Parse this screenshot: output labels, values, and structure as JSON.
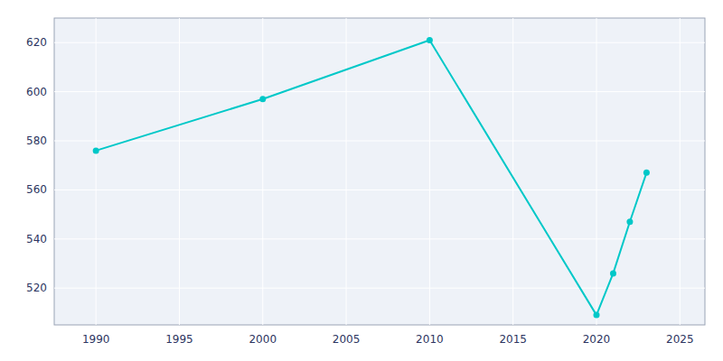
{
  "chart_data": {
    "type": "line",
    "x": [
      1990,
      2000,
      2010,
      2020,
      2021,
      2022,
      2023
    ],
    "values": [
      576,
      597,
      621,
      509,
      526,
      547,
      567
    ],
    "color": "#00c8c8",
    "marker": "circle",
    "xlim": [
      1987.5,
      2026.5
    ],
    "ylim": [
      505,
      630
    ],
    "xticks": [
      1990,
      1995,
      2000,
      2005,
      2010,
      2015,
      2020,
      2025
    ],
    "yticks": [
      520,
      540,
      560,
      580,
      600,
      620
    ],
    "grid": true
  }
}
